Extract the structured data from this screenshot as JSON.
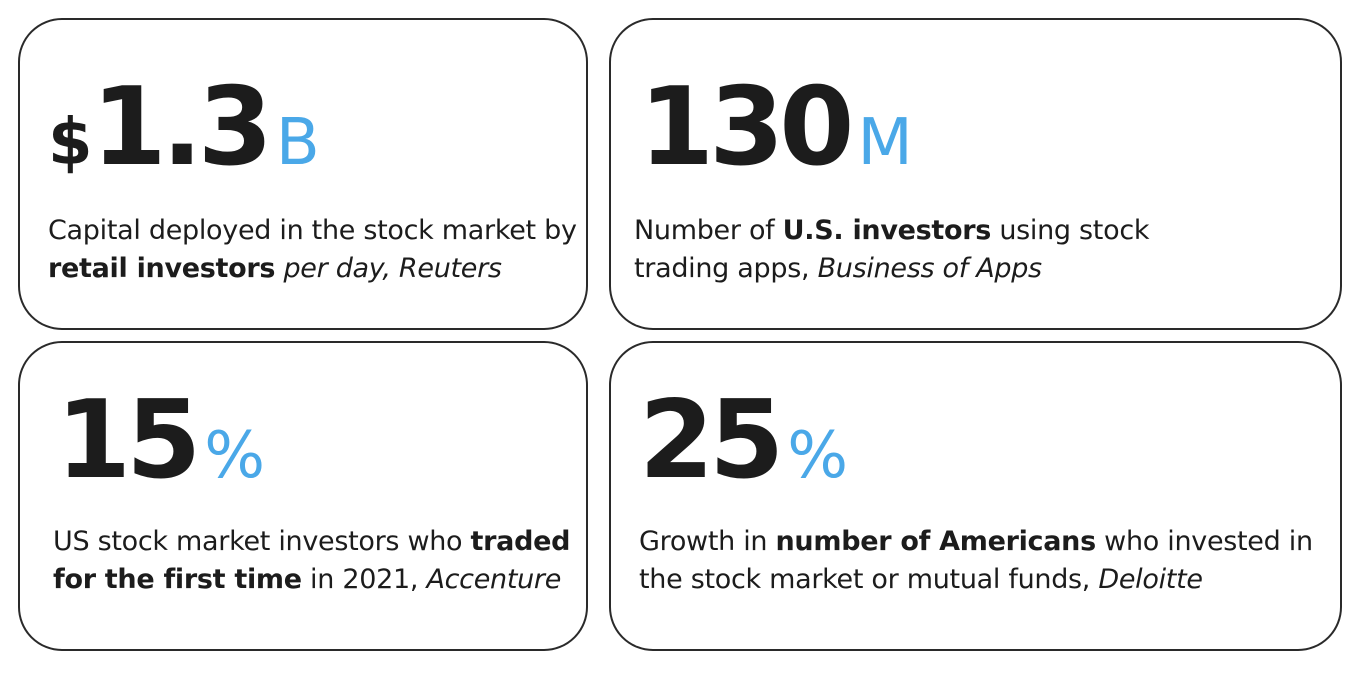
{
  "colors": {
    "accent": "#4aa8e8",
    "text": "#1c1c1c",
    "border": "#2a2a2a",
    "background": "#ffffff"
  },
  "cards": [
    {
      "prefix": "$",
      "number": "1.3",
      "suffix": "B",
      "desc": {
        "t1": "Capital deployed in the stock market by ",
        "b1": "retail investors",
        "t2": " ",
        "i1": "per day, Reuters"
      }
    },
    {
      "number": "130",
      "suffix": "M",
      "desc": {
        "t1": "Number of ",
        "b1": "U.S. investors",
        "t2": " using stock trading apps, ",
        "i1": "Business of Apps"
      }
    },
    {
      "number": "15",
      "suffix": "%",
      "desc": {
        "t1": "US stock market investors who ",
        "b1": "traded for the first time",
        "t2": " in 2021, ",
        "i1": "Accenture"
      }
    },
    {
      "number": "25",
      "suffix": "%",
      "desc": {
        "t1": "Growth in ",
        "b1": "number of Americans",
        "t2": " who invested in the stock market or mutual funds, ",
        "i1": "Deloitte"
      }
    }
  ]
}
